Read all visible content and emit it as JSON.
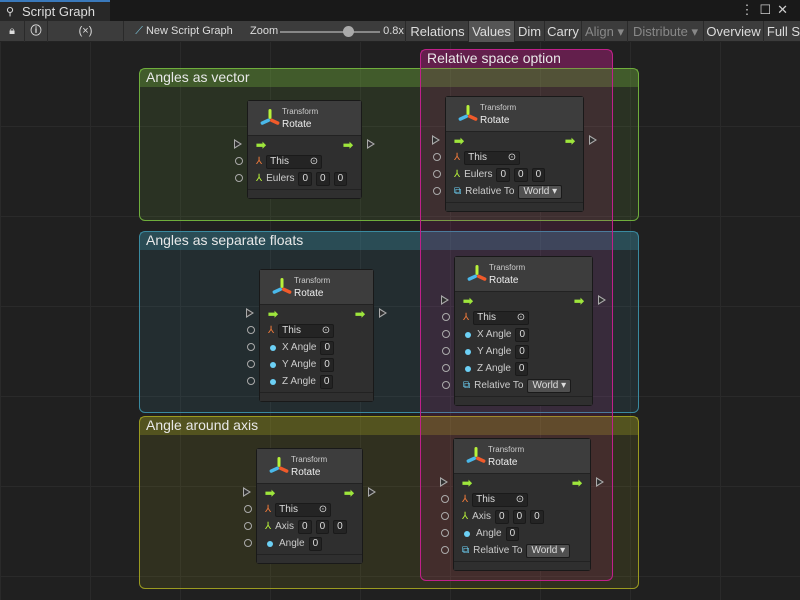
{
  "window": {
    "tab_title": "Script Graph",
    "tab_icon": "graph-icon",
    "menu_icon": "kebab-icon",
    "maximize_icon": "maximize-icon",
    "close_icon": "close-icon"
  },
  "toolbar": {
    "lock_icon": "lock-icon",
    "info_icon": "info-icon",
    "variables": "(×)",
    "new_graph": "New Script Graph",
    "zoom_label": "Zoom",
    "zoom_value": "0.8x",
    "zoom_level": 0.8,
    "buttons": [
      "Relations",
      "Values",
      "Dim",
      "Carry",
      "Align ▾",
      "Distribute ▾",
      "Overview",
      "Full S"
    ],
    "active": "Values",
    "disabled": [
      "Align ▾",
      "Distribute ▾"
    ]
  },
  "groups": [
    {
      "title": "Angles as vector",
      "color": "#6fae3c"
    },
    {
      "title": "Angles as separate floats",
      "color": "#3a8aa0"
    },
    {
      "title": "Angle around axis",
      "color": "#9a9a20"
    },
    {
      "title": "Relative space option",
      "color": "#c0208a"
    }
  ],
  "nodes": [
    {
      "category": "Transform",
      "title": "Rotate",
      "rows": [
        {
          "type": "transform",
          "label": "This"
        },
        {
          "type": "vector",
          "label": "Eulers",
          "values": [
            "0",
            "0",
            "0"
          ]
        }
      ]
    },
    {
      "category": "Transform",
      "title": "Rotate",
      "rows": [
        {
          "type": "transform",
          "label": "This"
        },
        {
          "type": "vector",
          "label": "Eulers",
          "values": [
            "0",
            "0",
            "0"
          ]
        },
        {
          "type": "space",
          "label": "Relative To",
          "value": "World"
        }
      ]
    },
    {
      "category": "Transform",
      "title": "Rotate",
      "rows": [
        {
          "type": "transform",
          "label": "This"
        },
        {
          "type": "float",
          "label": "X Angle",
          "value": "0"
        },
        {
          "type": "float",
          "label": "Y Angle",
          "value": "0"
        },
        {
          "type": "float",
          "label": "Z Angle",
          "value": "0"
        }
      ]
    },
    {
      "category": "Transform",
      "title": "Rotate",
      "rows": [
        {
          "type": "transform",
          "label": "This"
        },
        {
          "type": "float",
          "label": "X Angle",
          "value": "0"
        },
        {
          "type": "float",
          "label": "Y Angle",
          "value": "0"
        },
        {
          "type": "float",
          "label": "Z Angle",
          "value": "0"
        },
        {
          "type": "space",
          "label": "Relative To",
          "value": "World"
        }
      ]
    },
    {
      "category": "Transform",
      "title": "Rotate",
      "rows": [
        {
          "type": "transform",
          "label": "This"
        },
        {
          "type": "vector",
          "label": "Axis",
          "values": [
            "0",
            "0",
            "0"
          ]
        },
        {
          "type": "float",
          "label": "Angle",
          "value": "0"
        }
      ]
    },
    {
      "category": "Transform",
      "title": "Rotate",
      "rows": [
        {
          "type": "transform",
          "label": "This"
        },
        {
          "type": "vector",
          "label": "Axis",
          "values": [
            "0",
            "0",
            "0"
          ]
        },
        {
          "type": "float",
          "label": "Angle",
          "value": "0"
        },
        {
          "type": "space",
          "label": "Relative To",
          "value": "World"
        }
      ]
    }
  ]
}
